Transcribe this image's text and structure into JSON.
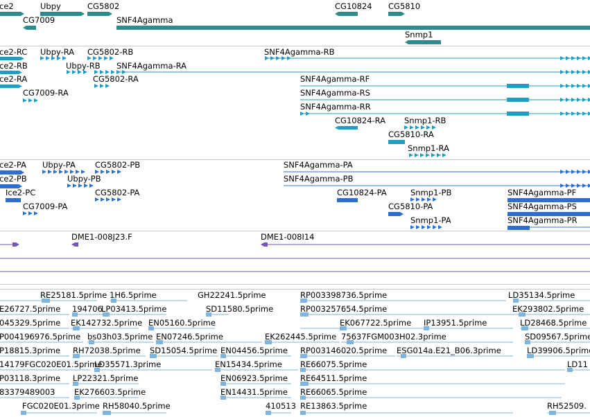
{
  "colors": {
    "gene": "#2e8b8b",
    "transcript": "#1f9dc0",
    "protein": "#2d6fd0",
    "clone": "#7656b8",
    "est": "#7fb4de",
    "separator": "#c8c8c8"
  },
  "gene_track": {
    "labels": [
      "ce2",
      "Ubpy",
      "CG5802",
      "CG10824",
      "CG5810",
      "CG7009",
      "SNF4Agamma",
      "Snmp1"
    ]
  },
  "transcript_track": {
    "labels": [
      "ce2-RC",
      "Ubpy-RA",
      "CG5802-RB",
      "SNF4Agamma-RB",
      "ce2-RB",
      "Ubpy-RB",
      "SNF4Agamma-RA",
      "ce2-RA",
      "CG5802-RA",
      "CG7009-RA",
      "SNF4Agamma-RF",
      "SNF4Agamma-RS",
      "SNF4Agamma-RR",
      "CG10824-RA",
      "Snmp1-RB",
      "CG5810-RA",
      "Snmp1-RA"
    ]
  },
  "protein_track": {
    "labels": [
      "ce2-PA",
      "Ubpy-PA",
      "CG5802-PB",
      "SNF4Agamma-PA",
      "ce2-PB",
      "Ubpy-PB",
      "SNF4Agamma-PB",
      "Ice2-PC",
      "CG5802-PA",
      "CG10824-PA",
      "Snmp1-PB",
      "SNF4Agamma-PF",
      "CG7009-PA",
      "CG5810-PA",
      "SNF4Agamma-PS",
      "Snmp1-PA",
      "SNF4Agamma-PR"
    ]
  },
  "clone_track": {
    "labels": [
      "DME1-008J23.F",
      "DME1-008I14"
    ]
  },
  "est_track": {
    "labels": [
      "RE25181.5prime",
      "1H6.5prime",
      "GH22241.5prime",
      "RP003398736.5prime",
      "LD35134.5prime",
      "E26727.5prime",
      "194706",
      "LP03413.5prime",
      "SD11580.5prime",
      "RP003257654.5prime",
      "EK293802.5prime",
      "045329.5prime",
      "EK142732.5prime",
      "EN05160.5prime",
      "EK067722.5prime",
      "IP13951.5prime",
      "LD28468.5prime",
      "P004196976.5prime",
      "bs03h03.5prime",
      "EN07246.5prime",
      "EK262445.5prime",
      "75637FGM003H02.3prime",
      "SD09567.5prime",
      "P18815.3prime",
      "RH72038.5prime",
      "SD15054.5prime",
      "EN04456.5prime",
      "RP003146020.5prime",
      "ESG014a.E21_B06.3prime",
      "LD39906.5prime",
      "14179FGC020E01.5prime",
      "LD35571.3prime",
      "EN15434.5prime",
      "RE66075.5prime",
      "LD11",
      "P03118.3prime",
      "LP22321.5prime",
      "EN06923.5prime",
      "RE64511.5prime",
      "83379489003",
      "EK276603.5prime",
      "EN14431.5prime",
      "RE66065.5prime",
      "FGC020E01.3prime",
      "RH58040.5prime",
      "410513",
      "RE13863.5prime",
      "RH52509."
    ]
  }
}
